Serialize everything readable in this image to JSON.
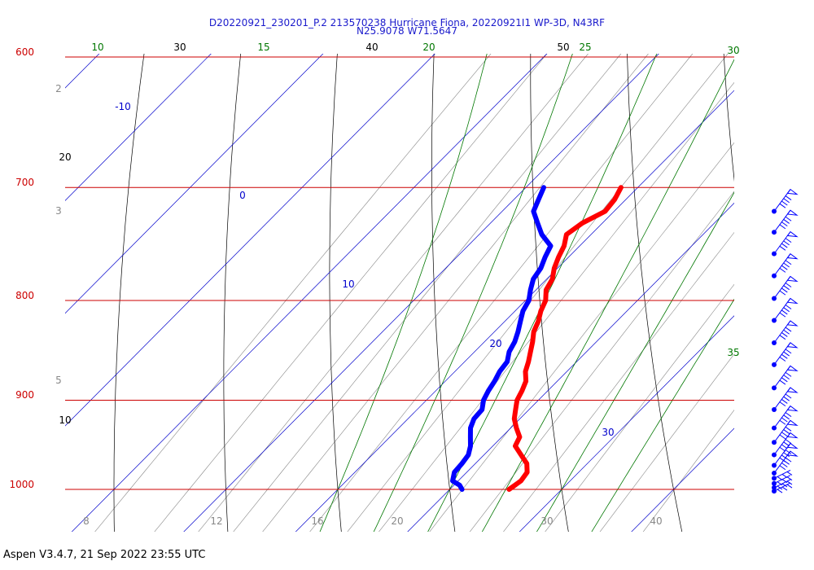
{
  "header": {
    "title_line1": "D20220921_230201_P.2 213570238 Hurricane Fiona, 20220921I1 WP-3D, N43RF",
    "title_line2": "N25.9078 W71.5647"
  },
  "footer": {
    "text": "Aspen V3.4.7, 21 Sep 2022  23:55 UTC"
  },
  "colors": {
    "isobar": "#cc0000",
    "isotherm": "#0000cc",
    "dry_adiabat": "#000000",
    "moist_adiabat": "#007700",
    "mixing_ratio": "#888888",
    "temperature": "#ff0000",
    "dewpoint": "#0000ff",
    "wind_barb": "#0000ff"
  },
  "chart_data": {
    "type": "line",
    "subtype": "skew-T log-p diagram",
    "y_axis": {
      "quantity": "pressure (hPa)",
      "scale": "log",
      "range": [
        1040,
        600
      ]
    },
    "x_axis": {
      "quantity": "temperature (°C)",
      "skewed": true
    },
    "pressure_labels": [
      "600",
      "700",
      "800",
      "900",
      "1000"
    ],
    "bottom_tick_labels": [
      "8",
      "12",
      "16",
      "20",
      "30",
      "40"
    ],
    "isotherm_labels": [
      "-10",
      "0",
      "10",
      "20",
      "30"
    ],
    "dry_adiabat_labels": [
      "10",
      "20",
      "30",
      "40",
      "50"
    ],
    "moist_adiabat_labels": [
      "10",
      "15",
      "20",
      "25",
      "30",
      "35"
    ],
    "mixing_ratio_labels": [
      "2",
      "3",
      "5"
    ],
    "series": [
      {
        "key": "temperature",
        "p": [
          1000,
          990,
          980,
          970,
          960,
          950,
          940,
          930,
          920,
          910,
          900,
          890,
          880,
          870,
          860,
          850,
          840,
          830,
          820,
          810,
          800,
          790,
          780,
          770,
          760,
          750,
          740,
          730,
          720,
          710,
          700
        ],
        "t": [
          25.3,
          25.6,
          25.4,
          24.6,
          23.3,
          22.0,
          21.6,
          20.5,
          19.5,
          18.8,
          18.1,
          17.7,
          17.2,
          16.3,
          15.7,
          15.0,
          14.3,
          13.5,
          13.0,
          12.3,
          11.8,
          10.9,
          10.5,
          9.7,
          9.1,
          8.6,
          7.8,
          8.2,
          9.2,
          9.0,
          8.5
        ]
      },
      {
        "key": "dewpoint",
        "p": [
          1000,
          995,
          990,
          980,
          970,
          960,
          950,
          940,
          930,
          920,
          910,
          900,
          890,
          880,
          870,
          860,
          850,
          840,
          830,
          820,
          810,
          800,
          790,
          780,
          770,
          760,
          750,
          740,
          730,
          720,
          710,
          700
        ],
        "t": [
          21.1,
          20.5,
          19.5,
          18.9,
          18.8,
          18.6,
          18.0,
          17.2,
          16.4,
          15.9,
          15.8,
          15.1,
          14.7,
          14.4,
          14.0,
          13.8,
          13.1,
          12.7,
          12.1,
          11.4,
          10.7,
          10.3,
          9.5,
          8.8,
          8.5,
          7.9,
          7.4,
          5.6,
          4.2,
          2.8,
          2.2,
          1.6
        ]
      }
    ],
    "wind_barb_levels_hpa": [
      1002,
      998,
      993,
      987,
      981,
      972,
      960,
      946,
      930,
      910,
      887,
      863,
      841,
      819,
      798,
      777,
      757,
      738,
      720
    ]
  }
}
